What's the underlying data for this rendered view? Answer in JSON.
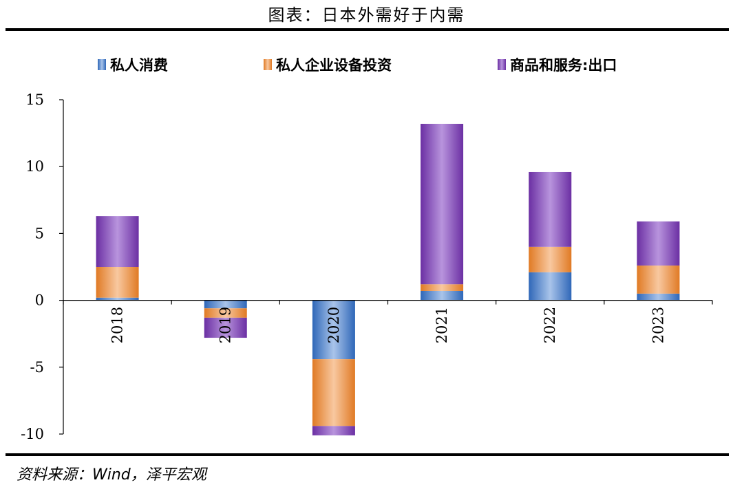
{
  "header": {
    "title": "图表：日本外需好于内需"
  },
  "footer": {
    "source": "资料来源：Wind，泽平宏观"
  },
  "colors": {
    "consumption": {
      "dark": "#2f67b8",
      "light": "#a9c4ea"
    },
    "investment": {
      "dark": "#e07a24",
      "light": "#f8c8a0"
    },
    "exports": {
      "dark": "#6b2fa3",
      "light": "#b894dd"
    }
  },
  "chart_data": {
    "type": "bar",
    "stacked": true,
    "categories": [
      "2018",
      "2019",
      "2020",
      "2021",
      "2022",
      "2023"
    ],
    "series": [
      {
        "name": "私人消费",
        "values": [
          0.2,
          -0.6,
          -4.4,
          0.7,
          2.1,
          0.5
        ]
      },
      {
        "name": "私人企业设备投资",
        "values": [
          2.3,
          -0.7,
          -5.0,
          0.5,
          1.9,
          2.1
        ]
      },
      {
        "name": "商品和服务:出口",
        "values": [
          3.8,
          -1.5,
          -0.7,
          12.0,
          5.6,
          3.3
        ]
      }
    ],
    "ylim": [
      -10,
      15
    ],
    "yticks": [
      "15",
      "10",
      "5",
      "0",
      "-5",
      "-10"
    ],
    "xlabel": "",
    "ylabel": "",
    "legend_position": "top",
    "grid": false
  }
}
